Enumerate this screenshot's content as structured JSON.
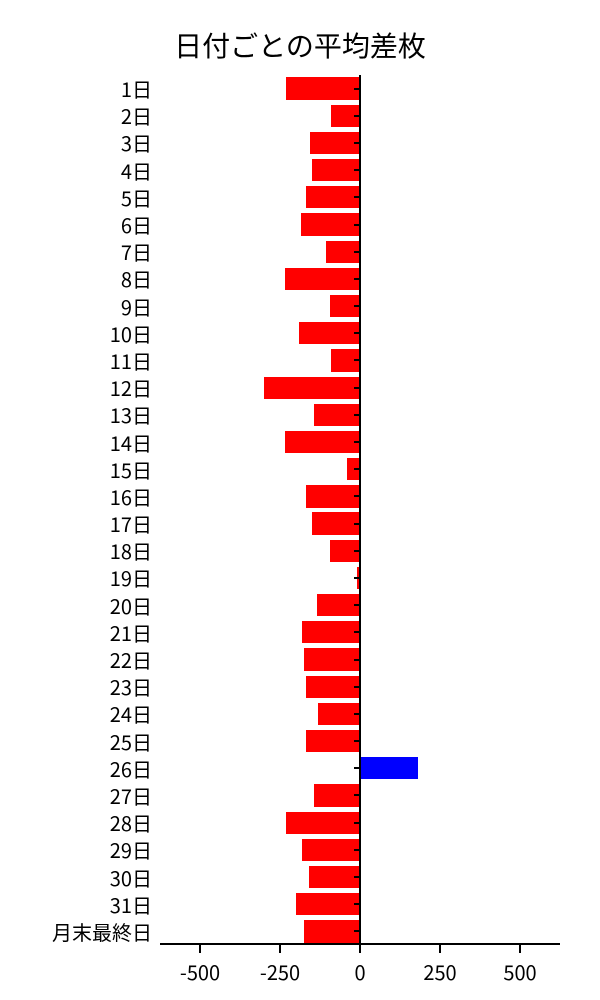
{
  "chart": {
    "type": "bar-horizontal",
    "title": "日付ごとの平均差枚",
    "title_fontsize": 28,
    "background_color": "#ffffff",
    "text_color": "#000000",
    "positive_color": "#0000ff",
    "negative_color": "#ff0000",
    "axis_color": "#000000",
    "xlim": [
      -625,
      625
    ],
    "xticks": [
      -500,
      -250,
      0,
      250,
      500
    ],
    "bar_fill_ratio": 0.82,
    "label_fontsize": 20,
    "tick_fontsize": 20,
    "categories": [
      "1日",
      "2日",
      "3日",
      "4日",
      "5日",
      "6日",
      "7日",
      "8日",
      "9日",
      "10日",
      "11日",
      "12日",
      "13日",
      "14日",
      "15日",
      "16日",
      "17日",
      "18日",
      "19日",
      "20日",
      "21日",
      "22日",
      "23日",
      "24日",
      "25日",
      "26日",
      "27日",
      "28日",
      "29日",
      "30日",
      "31日",
      "月末最終日"
    ],
    "values": [
      -230,
      -90,
      -155,
      -150,
      -170,
      -185,
      -105,
      -235,
      -95,
      -190,
      -90,
      -300,
      -145,
      -235,
      -40,
      -170,
      -150,
      -95,
      -10,
      -135,
      -180,
      -175,
      -170,
      -130,
      -170,
      180,
      -145,
      -230,
      -180,
      -160,
      -200,
      -175
    ]
  }
}
